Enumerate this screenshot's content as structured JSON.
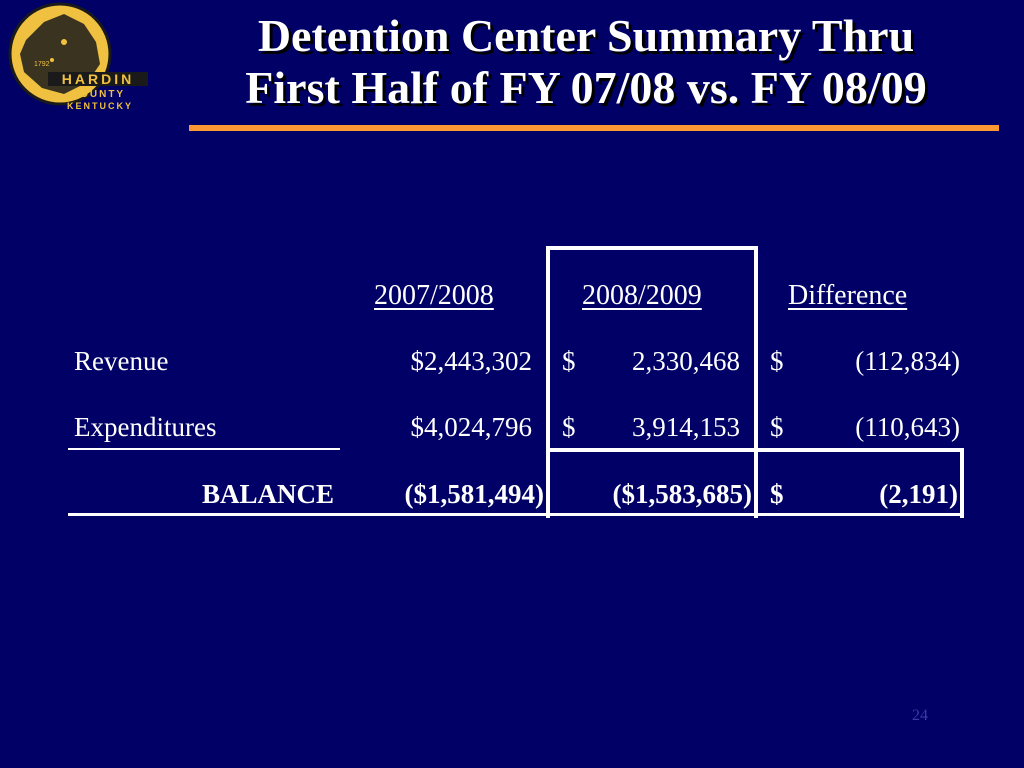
{
  "logo": {
    "year": "1792",
    "line1": "HARDIN",
    "line2": "COUNTY",
    "line3": "KENTUCKY",
    "colors": {
      "gold": "#f0c040",
      "dark": "#1a1a1a"
    }
  },
  "slide": {
    "title_line1": "Detention Center Summary Thru",
    "title_line2": "First Half of FY 07/08 vs. FY 08/09",
    "accent_color": "#ff9933",
    "background_color": "#000066",
    "page_number": "24"
  },
  "table": {
    "columns": [
      "2007/2008",
      "2008/2009",
      "Difference"
    ],
    "rows": [
      {
        "label": "Revenue",
        "fy0708": "$2,443,302",
        "fy0809_sym": "$",
        "fy0809": "2,330,468",
        "diff_sym": "$",
        "diff": "(112,834)"
      },
      {
        "label": "Expenditures",
        "fy0708": "$4,024,796",
        "fy0809_sym": "$",
        "fy0809": "3,914,153",
        "diff_sym": "$",
        "diff": "(110,643)"
      }
    ],
    "balance": {
      "label": "BALANCE",
      "fy0708": "($1,581,494)",
      "fy0809": "($1,583,685)",
      "diff_sym": "$",
      "diff": "(2,191)"
    }
  }
}
